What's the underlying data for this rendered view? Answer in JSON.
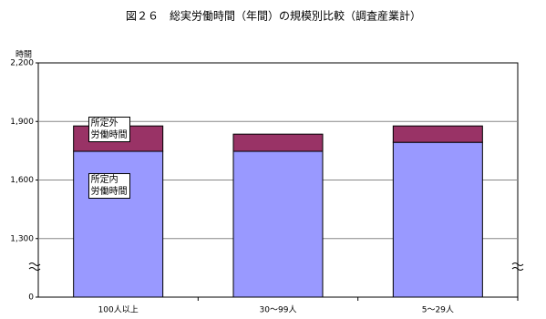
{
  "chart_data": {
    "type": "stacked-bar",
    "title": "図２６　総実労働時間（年間）の規模別比較（調査産業計）",
    "y_label": "時間",
    "categories": [
      "100人以上",
      "30～99人",
      "5～29人"
    ],
    "series": [
      {
        "name": "所定内\n労働時間",
        "color": "#9999ff",
        "values": [
          1747,
          1747,
          1793
        ]
      },
      {
        "name": "所定外\n労働時間",
        "color": "#993366",
        "values": [
          130,
          88,
          84
        ]
      }
    ],
    "ylim": [
      0,
      2200
    ],
    "yticks": [
      0,
      {
        "value": 1300,
        "label": "1,300"
      },
      {
        "value": 1600,
        "label": "1,600"
      },
      {
        "value": 1900,
        "label": "1,900"
      },
      {
        "value": 2200,
        "label": "2,200"
      }
    ],
    "grid": true
  }
}
